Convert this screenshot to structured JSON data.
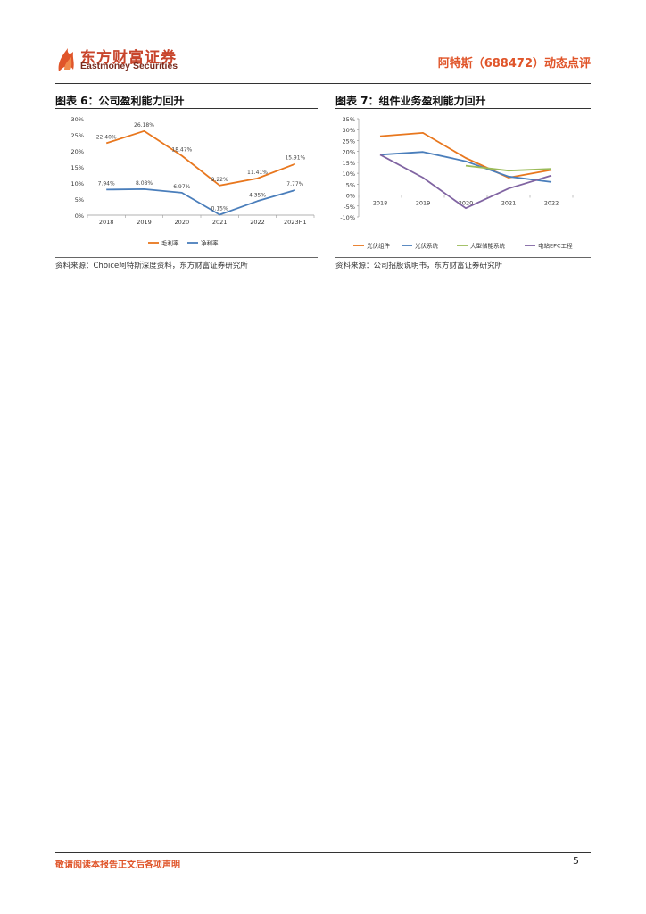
{
  "header": {
    "logo_cn": "东方财富证券",
    "logo_en": "Eastmoney Securities",
    "report_title": "阿特斯（688472）动态点评"
  },
  "figures": [
    {
      "title": "图表 6：公司盈利能力回升",
      "source": "资料来源：Choice阿特斯深度资料，东方财富证券研究所"
    },
    {
      "title": "图表 7：组件业务盈利能力回升",
      "source": "资料来源：公司招股说明书，东方财富证券研究所"
    }
  ],
  "chart_data": [
    {
      "type": "line",
      "x": [
        "2018",
        "2019",
        "2020",
        "2021",
        "2022",
        "2023H1"
      ],
      "y_ticks": [
        "0%",
        "5%",
        "10%",
        "15%",
        "20%",
        "25%",
        "30%"
      ],
      "ylim": [
        0,
        30
      ],
      "series": [
        {
          "name": "毛利率",
          "color": "#e8771e",
          "values": [
            22.4,
            26.18,
            18.47,
            9.22,
            11.41,
            15.91
          ],
          "labels": [
            "22.40%",
            "26.18%",
            "18.47%",
            "9.22%",
            "11.41%",
            "15.91%"
          ]
        },
        {
          "name": "净利率",
          "color": "#4a7ebb",
          "values": [
            7.94,
            8.08,
            6.97,
            0.15,
            4.35,
            7.77
          ],
          "labels": [
            "7.94%",
            "8.08%",
            "6.97%",
            "0.15%",
            "4.35%",
            "7.77%"
          ]
        }
      ],
      "legend": "bottom"
    },
    {
      "type": "line",
      "x": [
        "2018",
        "2019",
        "2020",
        "2021",
        "2022"
      ],
      "y_ticks": [
        "-10%",
        "-5%",
        "0%",
        "5%",
        "10%",
        "15%",
        "20%",
        "25%",
        "30%",
        "35%"
      ],
      "ylim": [
        -10,
        35
      ],
      "series": [
        {
          "name": "光伏组件",
          "color": "#e8771e",
          "values": [
            27,
            28.5,
            17,
            8,
            11.5
          ]
        },
        {
          "name": "光伏系统",
          "color": "#4a7ebb",
          "values": [
            18.5,
            19.8,
            15.5,
            8.5,
            6
          ]
        },
        {
          "name": "大型储能系统",
          "color": "#9bbb59",
          "values": [
            null,
            null,
            13.5,
            11.2,
            12
          ]
        },
        {
          "name": "电站EPC工程",
          "color": "#8064a2",
          "values": [
            18.5,
            8,
            -6,
            3,
            9
          ]
        }
      ],
      "legend": "bottom"
    }
  ],
  "footer": {
    "note": "敬请阅读本报告正文后各项声明",
    "page": "5"
  }
}
